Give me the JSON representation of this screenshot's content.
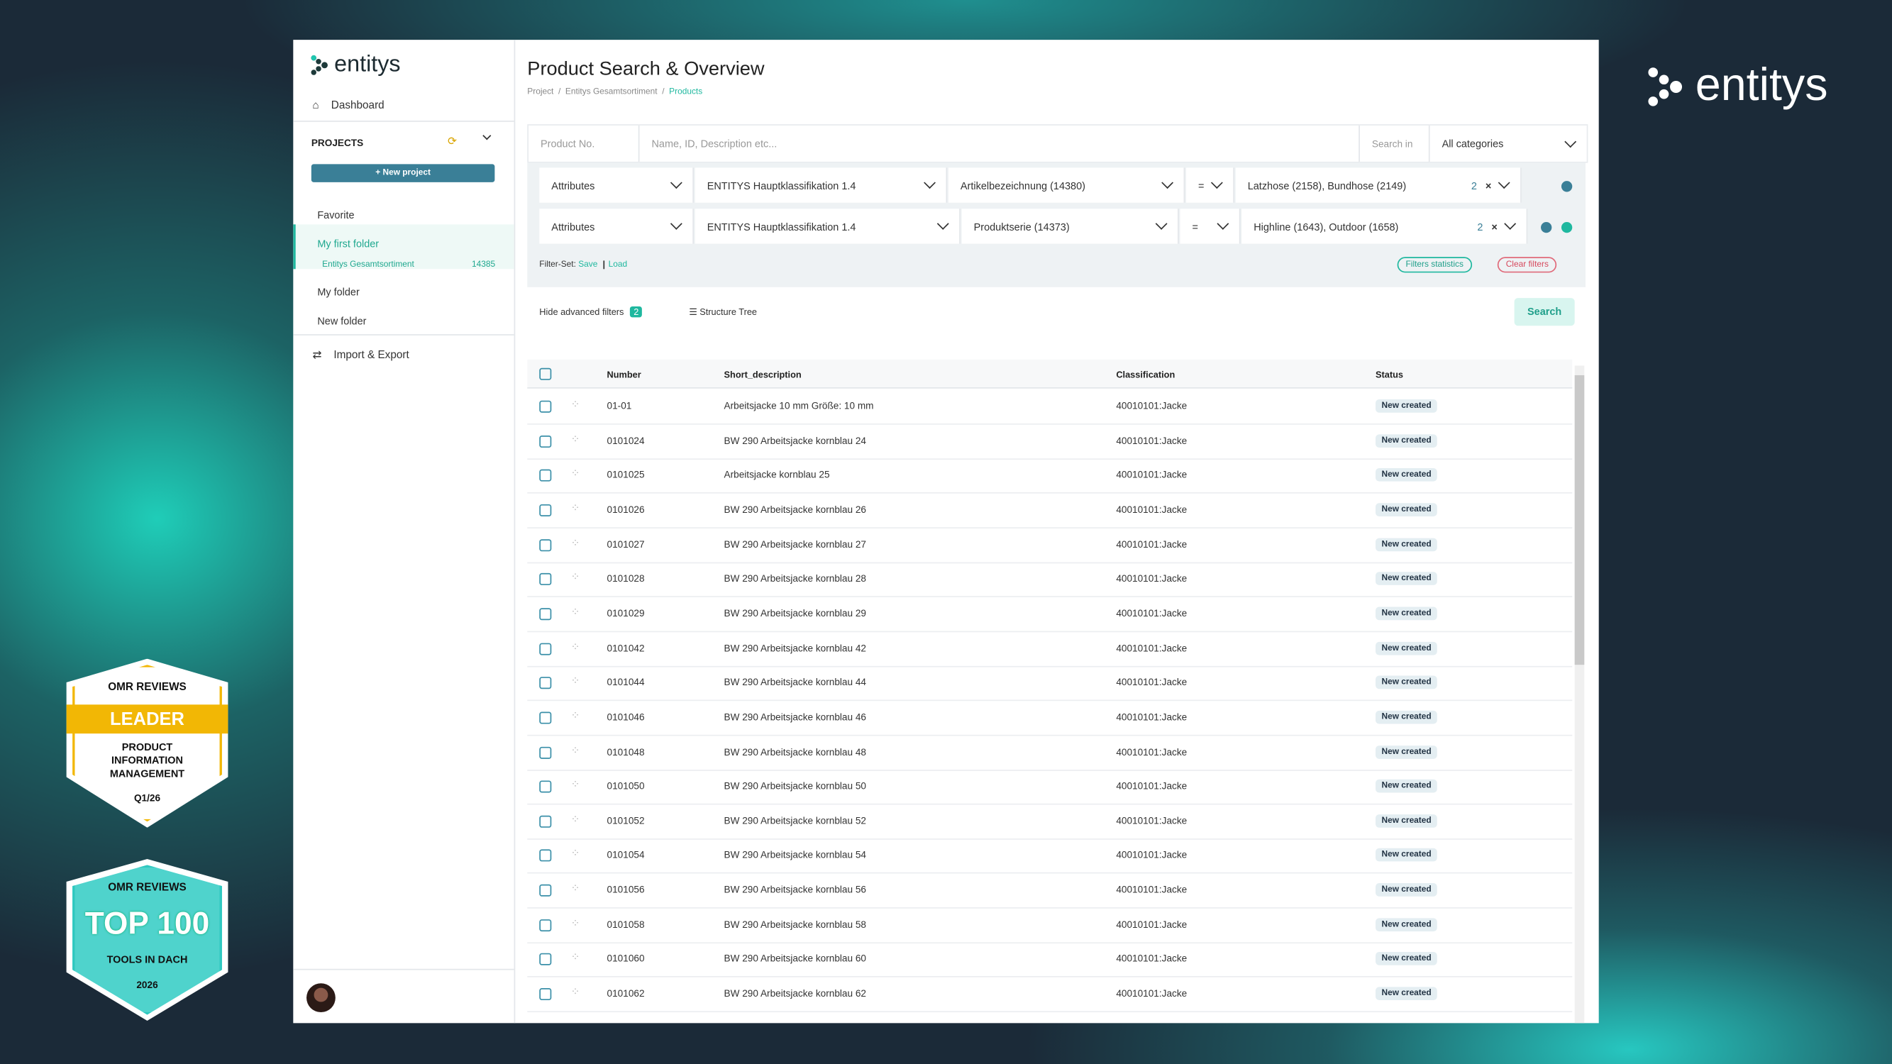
{
  "brand": "entitys",
  "sidebar": {
    "logo": "entitys",
    "dashboard": "Dashboard",
    "projects": "PROJECTS",
    "new_project": "+ New project",
    "tree": [
      {
        "label": "Favorite"
      },
      {
        "label": "My first folder"
      },
      {
        "label": "Entitys Gesamtsortiment",
        "count": "14385"
      },
      {
        "label": "My folder"
      },
      {
        "label": "New folder"
      }
    ],
    "import_export": "Import & Export"
  },
  "header": {
    "title": "Product Search & Overview",
    "breadcrumbs": [
      "Project",
      "Entitys Gesamtsortiment",
      "Products"
    ]
  },
  "search": {
    "product_no": "Product No.",
    "placeholder": "Name, ID, Description etc...",
    "search_in": "Search in",
    "category": "All categories"
  },
  "filters": [
    {
      "type": "Attributes",
      "classification": "ENTITYS Hauptklassifikation 1.4",
      "attribute": "Artikelbezeichnung (14380)",
      "operator": "=",
      "value": "Latzhose (2158), Bundhose (2149)",
      "count": "2"
    },
    {
      "type": "Attributes",
      "classification": "ENTITYS Hauptklassifikation 1.4",
      "attribute": "Produktserie (14373)",
      "operator": "=",
      "value": "Highline (1643), Outdoor (1658)",
      "count": "2"
    }
  ],
  "filter_set": {
    "label": "Filter-Set:",
    "save": "Save",
    "load": "Load",
    "statistics": "Filters statistics",
    "clear": "Clear filters"
  },
  "toolbar": {
    "hide_advanced": "Hide advanced filters",
    "badge": "2",
    "structure_tree": "Structure Tree",
    "search": "Search"
  },
  "table": {
    "columns": [
      "Number",
      "Short_description",
      "Classification",
      "Status"
    ],
    "rows": [
      [
        "01-01",
        "Arbeitsjacke 10 mm Größe: 10 mm",
        "40010101:Jacke",
        "New created"
      ],
      [
        "0101024",
        "BW 290 Arbeitsjacke kornblau 24",
        "40010101:Jacke",
        "New created"
      ],
      [
        "0101025",
        "Arbeitsjacke kornblau 25",
        "40010101:Jacke",
        "New created"
      ],
      [
        "0101026",
        "BW 290 Arbeitsjacke kornblau 26",
        "40010101:Jacke",
        "New created"
      ],
      [
        "0101027",
        "BW 290 Arbeitsjacke kornblau 27",
        "40010101:Jacke",
        "New created"
      ],
      [
        "0101028",
        "BW 290 Arbeitsjacke kornblau 28",
        "40010101:Jacke",
        "New created"
      ],
      [
        "0101029",
        "BW 290 Arbeitsjacke kornblau 29",
        "40010101:Jacke",
        "New created"
      ],
      [
        "0101042",
        "BW 290 Arbeitsjacke kornblau 42",
        "40010101:Jacke",
        "New created"
      ],
      [
        "0101044",
        "BW 290 Arbeitsjacke kornblau 44",
        "40010101:Jacke",
        "New created"
      ],
      [
        "0101046",
        "BW 290 Arbeitsjacke kornblau 46",
        "40010101:Jacke",
        "New created"
      ],
      [
        "0101048",
        "BW 290 Arbeitsjacke kornblau 48",
        "40010101:Jacke",
        "New created"
      ],
      [
        "0101050",
        "BW 290 Arbeitsjacke kornblau 50",
        "40010101:Jacke",
        "New created"
      ],
      [
        "0101052",
        "BW 290 Arbeitsjacke kornblau 52",
        "40010101:Jacke",
        "New created"
      ],
      [
        "0101054",
        "BW 290 Arbeitsjacke kornblau 54",
        "40010101:Jacke",
        "New created"
      ],
      [
        "0101056",
        "BW 290 Arbeitsjacke kornblau 56",
        "40010101:Jacke",
        "New created"
      ],
      [
        "0101058",
        "BW 290 Arbeitsjacke kornblau 58",
        "40010101:Jacke",
        "New created"
      ],
      [
        "0101060",
        "BW 290 Arbeitsjacke kornblau 60",
        "40010101:Jacke",
        "New created"
      ],
      [
        "0101062",
        "BW 290 Arbeitsjacke kornblau 62",
        "40010101:Jacke",
        "New created"
      ]
    ]
  },
  "badges": [
    {
      "brand": "OMR REVIEWS",
      "title": "LEADER",
      "subtitle": "PRODUCT INFORMATION MANAGEMENT",
      "period": "Q1/26"
    },
    {
      "brand": "OMR REVIEWS",
      "title": "TOP 100",
      "subtitle": "TOOLS IN DACH",
      "period": "2026"
    }
  ]
}
